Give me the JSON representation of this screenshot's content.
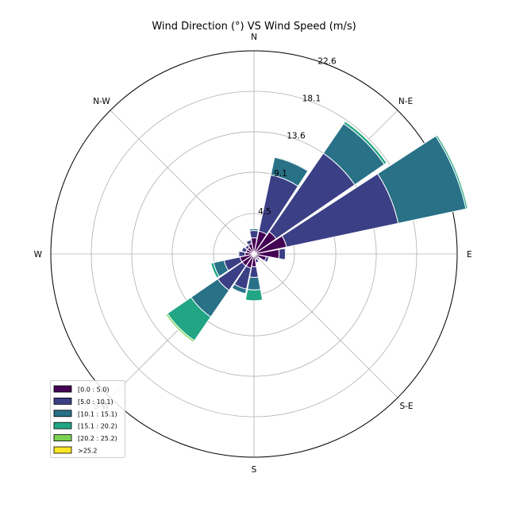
{
  "chart_data": {
    "type": "windrose",
    "title": "Wind Direction (°) VS Wind Speed (m/s)",
    "direction_labels": [
      "N",
      "N-E",
      "E",
      "S-E",
      "S",
      "S-W",
      "W",
      "N-W"
    ],
    "radial_ticks": [
      "4.5",
      "9.1",
      "13.6",
      "18.1",
      "22.6"
    ],
    "radial_tick_values": [
      4.5,
      9.1,
      13.6,
      18.1,
      22.6
    ],
    "rmax": 22.6,
    "grid": true,
    "legend_position": "bottom-left",
    "bins": [
      {
        "label": "[0.0 : 5.0)",
        "color": "#440154"
      },
      {
        "label": "[5.0 : 10.1)",
        "color": "#3b3f85"
      },
      {
        "label": "[10.1 : 15.1)",
        "color": "#287187"
      },
      {
        "label": "[15.1 : 20.2)",
        "color": "#21a585"
      },
      {
        "label": "[20.2 : 25.2)",
        "color": "#7ad151"
      },
      {
        ">": 0,
        "label": ">25.2",
        "color": "#fde725"
      }
    ],
    "sectors": [
      {
        "direction": 0.0,
        "values": [
          1.8,
          0.8,
          0.2,
          0.0,
          0.0,
          0.0
        ]
      },
      {
        "direction": 22.5,
        "values": [
          2.6,
          6.4,
          2.0,
          0.1,
          0.0,
          0.0
        ]
      },
      {
        "direction": 45.0,
        "values": [
          3.0,
          10.6,
          4.0,
          0.3,
          0.1,
          0.0
        ]
      },
      {
        "direction": 67.5,
        "values": [
          3.7,
          12.7,
          7.7,
          0.2,
          0.1,
          0.0
        ]
      },
      {
        "direction": 90.0,
        "values": [
          2.8,
          0.7,
          0.1,
          0.0,
          0.0,
          0.0
        ]
      },
      {
        "direction": 112.5,
        "values": [
          1.4,
          0.3,
          0.0,
          0.0,
          0.0,
          0.0
        ]
      },
      {
        "direction": 135.0,
        "values": [
          0.6,
          0.2,
          0.0,
          0.0,
          0.0,
          0.0
        ]
      },
      {
        "direction": 157.5,
        "values": [
          0.6,
          0.4,
          0.0,
          0.0,
          0.0,
          0.0
        ]
      },
      {
        "direction": 180.0,
        "values": [
          1.4,
          1.2,
          1.4,
          1.2,
          0.0,
          0.0
        ]
      },
      {
        "direction": 202.5,
        "values": [
          1.6,
          2.4,
          0.5,
          0.0,
          0.0,
          0.0
        ]
      },
      {
        "direction": 225.0,
        "values": [
          1.6,
          3.3,
          3.6,
          3.2,
          0.2,
          0.0
        ]
      },
      {
        "direction": 247.5,
        "values": [
          1.6,
          1.8,
          1.2,
          0.3,
          0.0,
          0.0
        ]
      },
      {
        "direction": 270.0,
        "values": [
          1.0,
          0.7,
          0.1,
          0.0,
          0.0,
          0.0
        ]
      },
      {
        "direction": 292.5,
        "values": [
          0.9,
          0.5,
          0.0,
          0.0,
          0.0,
          0.0
        ]
      },
      {
        "direction": 315.0,
        "values": [
          0.9,
          0.3,
          0.0,
          0.0,
          0.0,
          0.0
        ]
      },
      {
        "direction": 337.5,
        "values": [
          1.2,
          0.4,
          0.1,
          0.0,
          0.0,
          0.0
        ]
      }
    ]
  }
}
